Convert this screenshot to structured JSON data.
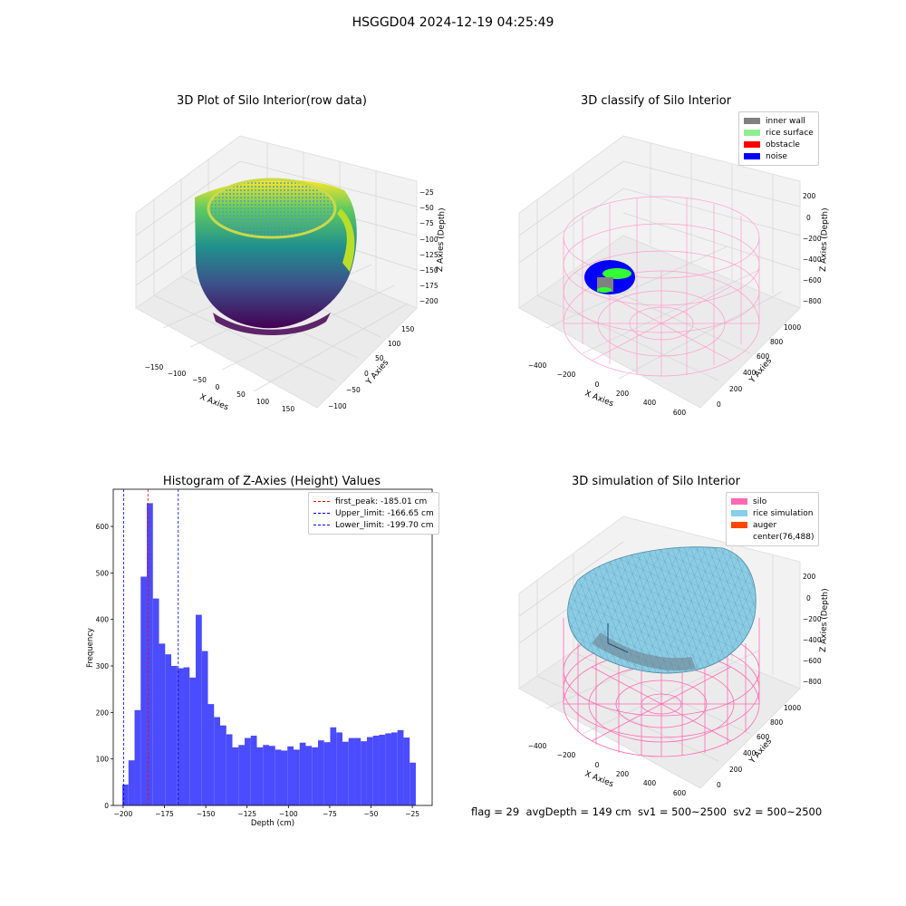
{
  "suptitle": "HSGGD04 2024-12-19 04:25:49",
  "panels": {
    "raw": {
      "title": "3D Plot of Silo Interior(row data)",
      "xlabel": "X Axies",
      "ylabel": "Y Axies",
      "zlabel": "Z Axies (Depth)",
      "xticks": [
        "−150",
        "−100",
        "−50",
        "0",
        "50",
        "100",
        "150"
      ],
      "yticks": [
        "−100",
        "−50",
        "0",
        "50",
        "100",
        "150"
      ],
      "zticks": [
        "−25",
        "−50",
        "−75",
        "−100",
        "−125",
        "−150",
        "−175",
        "−200"
      ]
    },
    "classify": {
      "title": "3D classify of Silo Interior",
      "xlabel": "X Axies",
      "ylabel": "Y Axies",
      "zlabel": "Z Axies (Depth)",
      "xticks": [
        "−400",
        "−200",
        "0",
        "200",
        "400",
        "600"
      ],
      "yticks": [
        "0",
        "200",
        "400",
        "600",
        "800",
        "1000"
      ],
      "zticks": [
        "200",
        "0",
        "−200",
        "−400",
        "−600",
        "−800"
      ],
      "legend": [
        {
          "label": "inner wall",
          "color": "#808080"
        },
        {
          "label": "rice surface",
          "color": "#90ee90"
        },
        {
          "label": "obstacle",
          "color": "#ff0000"
        },
        {
          "label": "noise",
          "color": "#0000ff"
        }
      ]
    },
    "simulation": {
      "title": "3D simulation of Silo Interior",
      "xlabel": "X Axies",
      "ylabel": "Y Axies",
      "zlabel": "Z Axies (Depth)",
      "xticks": [
        "−400",
        "−200",
        "0",
        "200",
        "400",
        "600"
      ],
      "yticks": [
        "0",
        "200",
        "400",
        "600",
        "800",
        "1000"
      ],
      "zticks": [
        "200",
        "0",
        "−200",
        "−400",
        "−600",
        "−800"
      ],
      "legend": [
        {
          "label": "silo",
          "color": "#ff69b4"
        },
        {
          "label": "rice simulation",
          "color": "#87ceeb"
        },
        {
          "label": "auger",
          "color": "#ff4500"
        },
        {
          "label": "center(76,488)",
          "color": ""
        }
      ]
    }
  },
  "status_line": "flag = 29  avgDepth = 149 cm  sv1 = 500~2500  sv2 = 500~2500",
  "chart_data": {
    "type": "bar",
    "title": "Histogram of Z-Axies (Height) Values",
    "xlabel": "Depth (cm)",
    "ylabel": "Frequency",
    "xlim": [
      -206,
      -13
    ],
    "ylim": [
      0,
      680
    ],
    "xticks": [
      -200,
      -175,
      -150,
      -125,
      -100,
      -75,
      -50,
      -25
    ],
    "yticks": [
      0,
      100,
      200,
      300,
      400,
      500,
      600
    ],
    "bin_start": -200.5,
    "bin_width": 3.7,
    "values": [
      45,
      97,
      205,
      492,
      650,
      445,
      348,
      325,
      300,
      295,
      297,
      275,
      410,
      332,
      218,
      190,
      172,
      153,
      125,
      130,
      145,
      150,
      125,
      130,
      128,
      120,
      118,
      127,
      120,
      135,
      128,
      125,
      140,
      136,
      168,
      157,
      137,
      145,
      145,
      138,
      147,
      150,
      152,
      155,
      157,
      162,
      146,
      92
    ],
    "bar_color": "#4b4bff",
    "vlines": [
      {
        "name": "first_peak: -185.01 cm",
        "x": -185.01,
        "color": "#ff0000"
      },
      {
        "name": "Upper_limit: -166.65 cm",
        "x": -166.65,
        "color": "#0000ff"
      },
      {
        "name": "Lower_limit: -199.70 cm",
        "x": -199.7,
        "color": "#0000ff"
      }
    ]
  }
}
